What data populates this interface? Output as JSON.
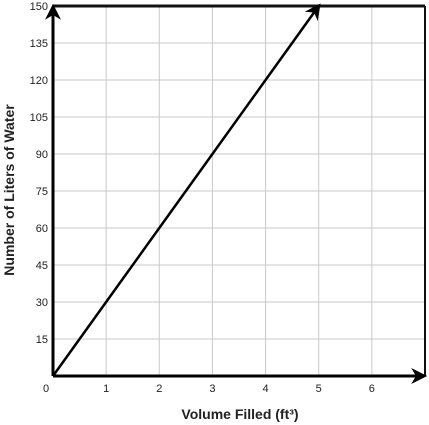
{
  "chart_data": {
    "type": "line",
    "title": "",
    "xlabel": "Volume Filled (ft³)",
    "ylabel": "Number of Liters of Water",
    "xlim": [
      0,
      7
    ],
    "ylim": [
      0,
      150
    ],
    "x_ticks": [
      "0",
      "1",
      "2",
      "3",
      "4",
      "5",
      "6"
    ],
    "y_ticks": [
      "15",
      "30",
      "45",
      "60",
      "75",
      "90",
      "105",
      "120",
      "135",
      "150"
    ],
    "grid": true,
    "legend": "none",
    "series": [
      {
        "x": [
          0,
          1,
          2,
          3,
          4,
          5
        ],
        "y": [
          0,
          30,
          60,
          90,
          120,
          150
        ]
      }
    ],
    "line_color": "#000000",
    "grid_color": "#c8c8c8"
  }
}
